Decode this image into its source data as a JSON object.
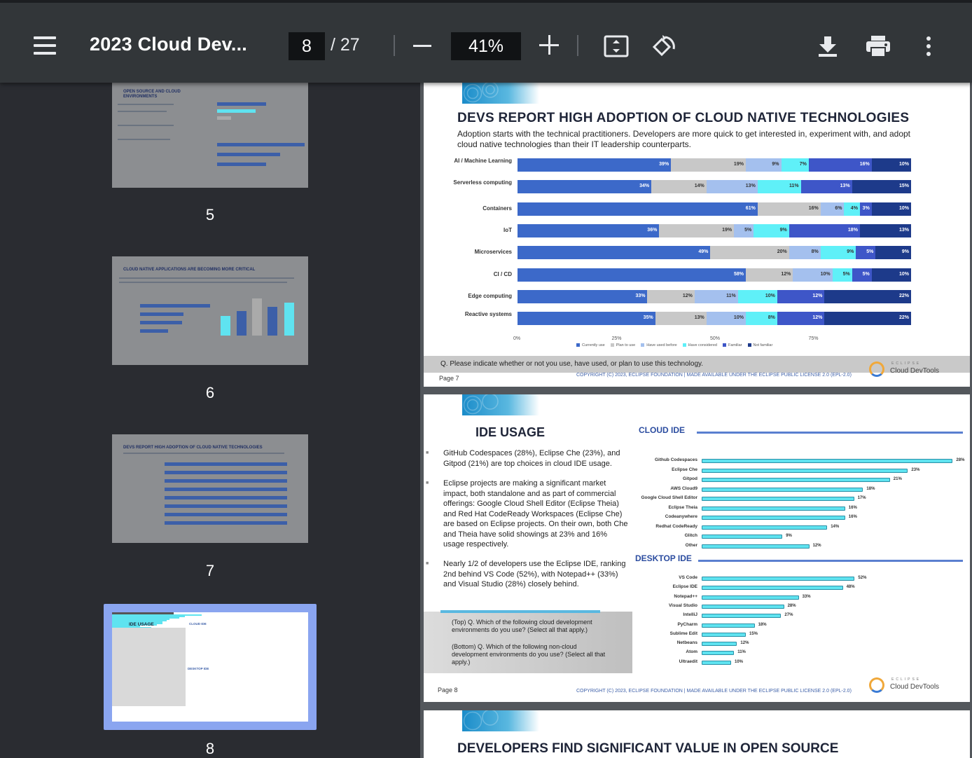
{
  "toolbar": {
    "title": "2023 Cloud Dev...",
    "page_current": "8",
    "page_total": "/ 27",
    "zoom": "41%"
  },
  "sidebar": {
    "thumbnails": [
      {
        "label": "5",
        "title": "OPEN SOURCE AND CLOUD ENVIRONMENTS"
      },
      {
        "label": "6",
        "title": "CLOUD NATIVE APPLICATIONS ARE BECOMING MORE CRITICAL"
      },
      {
        "label": "7",
        "title": "DEVS REPORT HIGH ADOPTION OF CLOUD NATIVE TECHNOLOGIES"
      },
      {
        "label": "8",
        "title": "IDE USAGE"
      }
    ]
  },
  "page7": {
    "title": "DEVS REPORT HIGH ADOPTION OF CLOUD NATIVE TECHNOLOGIES",
    "subtitle": "Adoption starts with the technical practitioners. Developers are more quick to get interested in, experiment with, and adopt cloud native technologies than their IT leadership counterparts.",
    "question": "Q. Please indicate whether or not you use, have used, or plan to use this technology.",
    "page_label": "Page 7",
    "copyright": "COPYRIGHT (C) 2023, ECLIPSE FOUNDATION  |  MADE AVAILABLE UNDER THE ECLIPSE PUBLIC LICENSE 2.0 (EPL-2.0)"
  },
  "page8": {
    "title": "IDE USAGE",
    "cloud_heading": "CLOUD IDE",
    "desktop_heading": "DESKTOP IDE",
    "bullets": [
      "GitHub Codespaces (28%),  Eclipse Che (23%), and Gitpod (21%) are top choices in cloud IDE usage.",
      "Eclipse projects are making a significant market impact, both standalone and as part of commercial offerings: Google Cloud Shell Editor (Eclipse Theia) and Red Hat CodeReady Workspaces (Eclipse Che) are based on Eclipse  projects. On their own, both Che and Theia have solid showings at 23% and 16% usage respectively.",
      "Nearly 1/2 of developers use the Eclipse IDE, ranking 2nd behind VS Code (52%), with Notepad++ (33%)  and Visual Studio (28%) closely behind."
    ],
    "question_top": "(Top) Q. Which of the following cloud development environments do you use? (Select all that apply.)",
    "question_bottom": "(Bottom) Q. Which of the following non-cloud development environments do you use? (Select all that apply.)",
    "page_label": "Page 8",
    "copyright": "COPYRIGHT (C) 2023, ECLIPSE FOUNDATION  |  MADE AVAILABLE UNDER THE ECLIPSE PUBLIC LICENSE 2.0 (EPL-2.0)"
  },
  "page9": {
    "title": "DEVELOPERS FIND SIGNIFICANT VALUE IN OPEN SOURCE"
  },
  "branding": {
    "eclipse": "ECLIPSE",
    "product": "Cloud DevTools"
  },
  "colors": {
    "currently_use": "#3c69c9",
    "plan_to_use": "#c8c8c8",
    "have_used_before": "#a4c0ee",
    "have_considered": "#5ff0f8",
    "familiar": "#3e56c8",
    "not_familiar": "#1d3a8a"
  },
  "chart_data": [
    {
      "type": "bar",
      "stacked": true,
      "orientation": "horizontal",
      "categories": [
        "AI / Machine Learning",
        "Serverless computing",
        "Containers",
        "IoT",
        "Microservices",
        "CI / CD",
        "Edge computing",
        "Reactive systems"
      ],
      "series": [
        {
          "name": "Currently use",
          "values": [
            39,
            34,
            61,
            36,
            49,
            58,
            33,
            35
          ]
        },
        {
          "name": "Plan to use",
          "values": [
            19,
            14,
            16,
            19,
            20,
            12,
            12,
            13
          ]
        },
        {
          "name": "Have used before",
          "values": [
            9,
            13,
            6,
            5,
            8,
            10,
            11,
            10
          ]
        },
        {
          "name": "Have considered",
          "values": [
            7,
            11,
            4,
            9,
            9,
            5,
            10,
            8
          ]
        },
        {
          "name": "Familiar",
          "values": [
            16,
            13,
            3,
            18,
            5,
            5,
            12,
            12
          ]
        },
        {
          "name": "Not familiar",
          "values": [
            10,
            15,
            10,
            13,
            9,
            10,
            22,
            22
          ]
        }
      ],
      "xticks": [
        "0%",
        "25%",
        "50%",
        "75%"
      ],
      "xlim": [
        0,
        100
      ],
      "legend": "bottom"
    },
    {
      "type": "bar",
      "orientation": "horizontal",
      "title": "CLOUD IDE",
      "categories": [
        "Github Codespaces",
        "Eclipse Che",
        "Gitpod",
        "AWS Cloud9",
        "Google Cloud Shell Editor",
        "Eclipse Theia",
        "Codeanywhere",
        "Redhat CodeReady",
        "Glitch",
        "Other"
      ],
      "values": [
        28,
        23,
        21,
        18,
        17,
        16,
        16,
        14,
        9,
        12
      ]
    },
    {
      "type": "bar",
      "orientation": "horizontal",
      "title": "DESKTOP IDE",
      "categories": [
        "VS Code",
        "Eclipse IDE",
        "Notepad++",
        "Visual Studio",
        "IntelliJ",
        "PyCharm",
        "Sublime Edit",
        "Netbeans",
        "Atom",
        "Ultraedit"
      ],
      "values": [
        52,
        48,
        33,
        28,
        27,
        18,
        15,
        12,
        11,
        10
      ]
    }
  ]
}
